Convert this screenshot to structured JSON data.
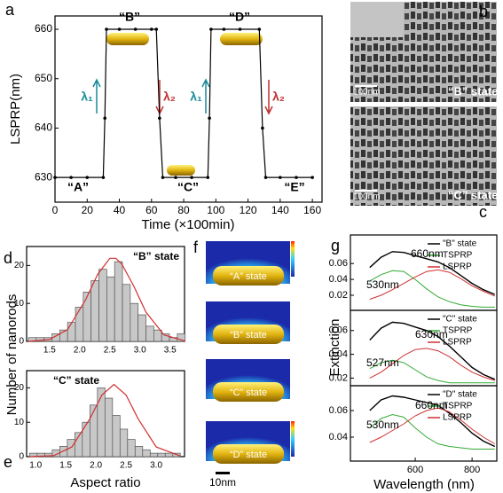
{
  "panel_labels": [
    "a",
    "b",
    "c",
    "d",
    "e",
    "f",
    "g"
  ],
  "tem": {
    "scales": [
      "100nm",
      "100nm"
    ],
    "states": [
      "“B” state",
      "“C” state"
    ]
  },
  "simulation": {
    "states": [
      "“A” state",
      "“B” state",
      "“C” state",
      "“D” state"
    ],
    "scale": "10nm"
  },
  "chart_data": [
    {
      "type": "line",
      "ylabel": "LSPRP(nm)",
      "xlabel": "Time (×100min)",
      "color": "#000000",
      "x": [
        0,
        10,
        20,
        30,
        31,
        32,
        40,
        50,
        60,
        63,
        65,
        67,
        75,
        85,
        95,
        96,
        97,
        105,
        115,
        127,
        129,
        131,
        140,
        150,
        160
      ],
      "values": [
        630,
        630,
        630,
        630,
        642,
        660,
        660,
        660,
        660,
        660,
        642,
        630,
        630,
        630,
        630,
        642,
        660,
        660,
        660,
        660,
        640,
        630,
        630,
        630,
        630
      ],
      "xlim": [
        0,
        166
      ],
      "ylim": [
        625,
        662.7
      ],
      "xticks": [
        0,
        20,
        40,
        60,
        80,
        100,
        120,
        140,
        160
      ],
      "yticks": [
        630,
        640,
        650,
        660
      ],
      "annotations": [
        "“A”",
        "“B”",
        "“C”",
        "“D”",
        "“E”",
        "λ₁",
        "λ₂",
        "λ₁",
        "λ₂"
      ]
    },
    {
      "type": "histogram",
      "ylabel": "Number of nanorods",
      "color": "#c8c8c8",
      "bins": [
        1.15,
        1.28,
        1.41,
        1.54,
        1.67,
        1.8,
        1.93,
        2.06,
        2.19,
        2.32,
        2.45,
        2.58,
        2.71,
        2.84,
        2.97,
        3.1,
        3.23,
        3.36,
        3.49,
        3.62,
        3.75
      ],
      "values": [
        1,
        1,
        1,
        2,
        3,
        5,
        9,
        13,
        16,
        19,
        17,
        21,
        15,
        10,
        7,
        4,
        3,
        2,
        1,
        2
      ],
      "fit": {
        "color": "#d03030",
        "x": [
          1.15,
          1.5,
          1.8,
          2.1,
          2.3,
          2.5,
          2.6,
          2.7,
          2.9,
          3.1,
          3.4,
          3.75
        ],
        "values": [
          0,
          0.5,
          3.1,
          11,
          17.7,
          21.9,
          21.9,
          20.4,
          14.5,
          7.7,
          1.7,
          0.1
        ]
      },
      "xlim": [
        1.12,
        3.74
      ],
      "ylim": [
        0,
        25
      ],
      "xticks": [
        1.5,
        {
          "value": 2,
          "label": "2.0"
        },
        2.5,
        {
          "value": 3,
          "label": "3.0"
        },
        3.5
      ],
      "yticks": [
        0,
        10,
        20
      ],
      "annotations": [
        "“B” state"
      ]
    },
    {
      "type": "histogram",
      "xlabel": "Aspect ratio",
      "color": "#c8c8c8",
      "bins": [
        0.9,
        1.025,
        1.15,
        1.275,
        1.4,
        1.525,
        1.65,
        1.775,
        1.9,
        2.025,
        2.15,
        2.275,
        2.4,
        2.525,
        2.65,
        2.775,
        2.9,
        3.025,
        3.15,
        3.275,
        3.4
      ],
      "values": [
        1,
        1,
        1,
        2,
        3,
        5,
        7,
        10,
        15,
        20,
        17,
        12,
        8,
        5,
        3,
        2,
        1,
        1,
        1,
        1
      ],
      "fit": {
        "color": "#d03030",
        "x": [
          0.9,
          1.3,
          1.6,
          1.9,
          2.1,
          2.3,
          2.5,
          2.7,
          3.0,
          3.4
        ],
        "values": [
          0,
          0.3,
          2.8,
          11,
          17.9,
          21,
          17.9,
          11,
          2.8,
          0.2
        ]
      },
      "xlim": [
        0.85,
        3.47
      ],
      "ylim": [
        0,
        25
      ],
      "xticks": [
        {
          "value": 1,
          "label": "1.0"
        },
        1.5,
        {
          "value": 2,
          "label": "2.0"
        },
        2.5,
        {
          "value": 3,
          "label": "3.0"
        }
      ],
      "yticks": [
        0,
        10,
        20
      ],
      "annotations": [
        "“C” state"
      ]
    },
    {
      "type": "line",
      "x": [
        440,
        480,
        520,
        560,
        600,
        640,
        680,
        720,
        760,
        800,
        840,
        880
      ],
      "xlim": [
        372,
        887
      ],
      "ylim": [
        0.001,
        0.096
      ],
      "yticks": [
        0.02,
        0.04,
        0.06
      ],
      "series": [
        {
          "name": "\"B\" state",
          "color": "#000000",
          "values": [
            0.055,
            0.068,
            0.075,
            0.074,
            0.07,
            0.066,
            0.062,
            0.055,
            0.045,
            0.035,
            0.027,
            0.021
          ]
        },
        {
          "name": "TSPRP",
          "color": "#33aa33",
          "values": [
            0.038,
            0.046,
            0.051,
            0.05,
            0.04,
            0.028,
            0.018,
            0.012,
            0.008,
            0.006,
            0.005,
            0.005
          ]
        },
        {
          "name": "LSPRP",
          "color": "#d03030",
          "values": [
            0.015,
            0.02,
            0.027,
            0.035,
            0.043,
            0.05,
            0.052,
            0.049,
            0.041,
            0.032,
            0.025,
            0.019
          ]
        }
      ],
      "annotations": [
        "530nm",
        "660nm"
      ]
    },
    {
      "type": "line",
      "ylabel": "Extinction",
      "x": [
        440,
        480,
        520,
        560,
        600,
        640,
        680,
        720,
        760,
        800,
        840,
        880
      ],
      "xlim": [
        372,
        887
      ],
      "ylim": [
        0.0136,
        0.077
      ],
      "yticks": [
        0.02,
        0.04,
        0.06
      ],
      "series": [
        {
          "name": "\"C\" state",
          "color": "#000000",
          "values": [
            0.052,
            0.062,
            0.067,
            0.066,
            0.063,
            0.06,
            0.055,
            0.047,
            0.038,
            0.029,
            0.023,
            0.019
          ]
        },
        {
          "name": "TSPRP",
          "color": "#33aa33",
          "values": [
            0.028,
            0.033,
            0.035,
            0.033,
            0.027,
            0.021,
            0.018,
            0.016,
            0.016,
            0.016,
            0.016,
            0.016
          ]
        },
        {
          "name": "LSPRP",
          "color": "#d03030",
          "values": [
            0.02,
            0.025,
            0.032,
            0.039,
            0.044,
            0.045,
            0.043,
            0.038,
            0.031,
            0.025,
            0.021,
            0.018
          ]
        }
      ],
      "annotations": [
        "527nm",
        "630nm"
      ]
    },
    {
      "type": "line",
      "xlabel": "Wavelength (nm)",
      "x": [
        440,
        480,
        520,
        560,
        600,
        640,
        680,
        720,
        760,
        800,
        840,
        880
      ],
      "xlim": [
        372,
        887
      ],
      "ylim": [
        0.022,
        0.0787
      ],
      "xticks": [
        600,
        800
      ],
      "yticks": [
        0.04,
        0.06
      ],
      "series": [
        {
          "name": "\"D\" state",
          "color": "#000000",
          "values": [
            0.06,
            0.068,
            0.071,
            0.07,
            0.068,
            0.066,
            0.064,
            0.058,
            0.051,
            0.043,
            0.037,
            0.033
          ]
        },
        {
          "name": "TSPRP",
          "color": "#33aa33",
          "values": [
            0.047,
            0.054,
            0.057,
            0.055,
            0.047,
            0.04,
            0.035,
            0.033,
            0.032,
            0.031,
            0.031,
            0.031
          ]
        },
        {
          "name": "LSPRP",
          "color": "#d03030",
          "values": [
            0.036,
            0.04,
            0.045,
            0.05,
            0.056,
            0.06,
            0.062,
            0.059,
            0.053,
            0.046,
            0.04,
            0.035
          ]
        }
      ],
      "annotations": [
        "530nm",
        "660nm"
      ]
    }
  ]
}
